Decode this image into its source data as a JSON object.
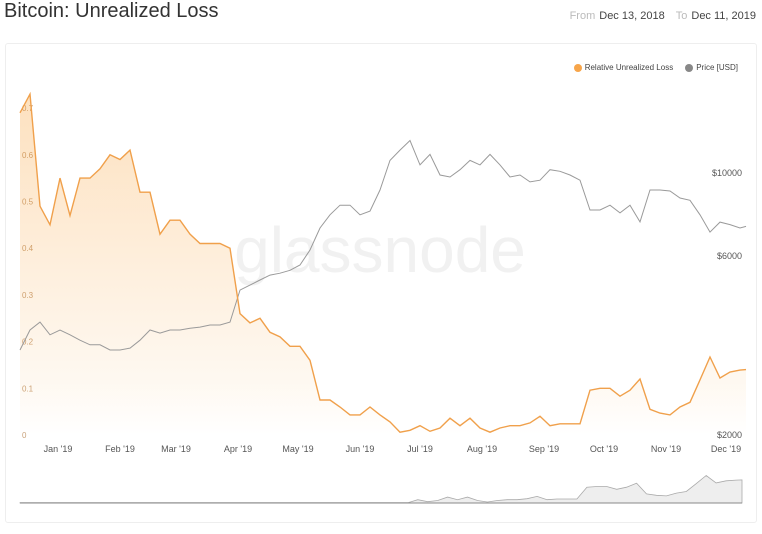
{
  "header": {
    "title": "Bitcoin: Unrealized Loss",
    "from_label": "From",
    "from_date": "Dec 13, 2018",
    "to_label": "To",
    "to_date": "Dec 11, 2019"
  },
  "watermark": "glassnode",
  "chart_data": {
    "type": "line",
    "title": "Bitcoin: Unrealized Loss",
    "legend_position": "top-right",
    "grid": false,
    "x_tick_labels": [
      "Jan '19",
      "Feb '19",
      "Mar '19",
      "Apr '19",
      "May '19",
      "Jun '19",
      "Jul '19",
      "Aug '19",
      "Sep '19",
      "Oct '19",
      "Nov '19",
      "Dec '19"
    ],
    "x_ticks": [
      "2019-01-01",
      "2019-02-01",
      "2019-03-01",
      "2019-04-01",
      "2019-05-01",
      "2019-06-01",
      "2019-07-01",
      "2019-08-01",
      "2019-09-01",
      "2019-10-01",
      "2019-11-01",
      "2019-12-01"
    ],
    "xlim": [
      "2018-12-13",
      "2019-12-11"
    ],
    "y_left": {
      "ylim": [
        0,
        0.75
      ],
      "ticks": [
        0,
        0.1,
        0.2,
        0.3,
        0.4,
        0.5,
        0.6,
        0.7
      ],
      "tick_labels": [
        "0",
        "0.1",
        "0.2",
        "0.3",
        "0.4",
        "0.5",
        "0.6",
        "0.7"
      ]
    },
    "y_right": {
      "scale": "log",
      "ylim": [
        2000,
        15000
      ],
      "ticks": [
        2000,
        6000,
        10000
      ],
      "tick_labels": [
        "$2000",
        "$6000",
        "$10000"
      ]
    },
    "x": [
      "2018-12-13",
      "2018-12-18",
      "2018-12-23",
      "2018-12-28",
      "2019-01-02",
      "2019-01-07",
      "2019-01-12",
      "2019-01-17",
      "2019-01-22",
      "2019-01-27",
      "2019-02-01",
      "2019-02-06",
      "2019-02-11",
      "2019-02-16",
      "2019-02-21",
      "2019-02-26",
      "2019-03-03",
      "2019-03-08",
      "2019-03-13",
      "2019-03-18",
      "2019-03-23",
      "2019-03-28",
      "2019-04-02",
      "2019-04-07",
      "2019-04-12",
      "2019-04-17",
      "2019-04-22",
      "2019-04-27",
      "2019-05-02",
      "2019-05-07",
      "2019-05-12",
      "2019-05-17",
      "2019-05-22",
      "2019-05-27",
      "2019-06-01",
      "2019-06-06",
      "2019-06-11",
      "2019-06-16",
      "2019-06-21",
      "2019-06-26",
      "2019-07-01",
      "2019-07-06",
      "2019-07-11",
      "2019-07-16",
      "2019-07-21",
      "2019-07-26",
      "2019-07-31",
      "2019-08-05",
      "2019-08-10",
      "2019-08-15",
      "2019-08-20",
      "2019-08-25",
      "2019-08-30",
      "2019-09-04",
      "2019-09-09",
      "2019-09-14",
      "2019-09-19",
      "2019-09-24",
      "2019-09-29",
      "2019-10-04",
      "2019-10-09",
      "2019-10-14",
      "2019-10-19",
      "2019-10-24",
      "2019-10-29",
      "2019-11-03",
      "2019-11-08",
      "2019-11-13",
      "2019-11-18",
      "2019-11-23",
      "2019-11-28",
      "2019-12-03",
      "2019-12-08",
      "2019-12-11"
    ],
    "series": [
      {
        "name": "Relative Unrealized Loss",
        "axis": "left",
        "color": "#f7931a",
        "values": [
          0.69,
          0.73,
          0.49,
          0.45,
          0.55,
          0.47,
          0.55,
          0.55,
          0.57,
          0.6,
          0.59,
          0.61,
          0.52,
          0.52,
          0.43,
          0.46,
          0.46,
          0.43,
          0.41,
          0.41,
          0.41,
          0.4,
          0.26,
          0.24,
          0.25,
          0.22,
          0.21,
          0.19,
          0.19,
          0.16,
          0.075,
          0.075,
          0.06,
          0.043,
          0.043,
          0.06,
          0.043,
          0.028,
          0.006,
          0.01,
          0.02,
          0.008,
          0.015,
          0.036,
          0.02,
          0.036,
          0.015,
          0.006,
          0.015,
          0.02,
          0.02,
          0.026,
          0.04,
          0.02,
          0.024,
          0.024,
          0.024,
          0.096,
          0.1,
          0.1,
          0.083,
          0.096,
          0.12,
          0.055,
          0.047,
          0.043,
          0.06,
          0.07,
          0.118,
          0.167,
          0.122,
          0.135,
          0.139,
          0.14
        ]
      },
      {
        "name": "Price [USD]",
        "axis": "right",
        "color": "#888888",
        "values": [
          3370,
          3810,
          4000,
          3700,
          3810,
          3700,
          3580,
          3480,
          3480,
          3370,
          3370,
          3410,
          3580,
          3810,
          3740,
          3810,
          3810,
          3850,
          3880,
          3930,
          3930,
          4000,
          4870,
          5020,
          5180,
          5340,
          5400,
          5500,
          5680,
          6230,
          7130,
          7730,
          8200,
          8200,
          7730,
          7910,
          9000,
          10800,
          11500,
          12200,
          10500,
          11200,
          9870,
          9750,
          10200,
          10800,
          10500,
          11200,
          10500,
          9750,
          9870,
          9460,
          9560,
          10200,
          10100,
          9870,
          9560,
          7960,
          7960,
          8200,
          7820,
          8200,
          7400,
          9000,
          9000,
          8950,
          8570,
          8450,
          7730,
          6950,
          7390,
          7280,
          7130,
          7200
        ]
      }
    ]
  }
}
